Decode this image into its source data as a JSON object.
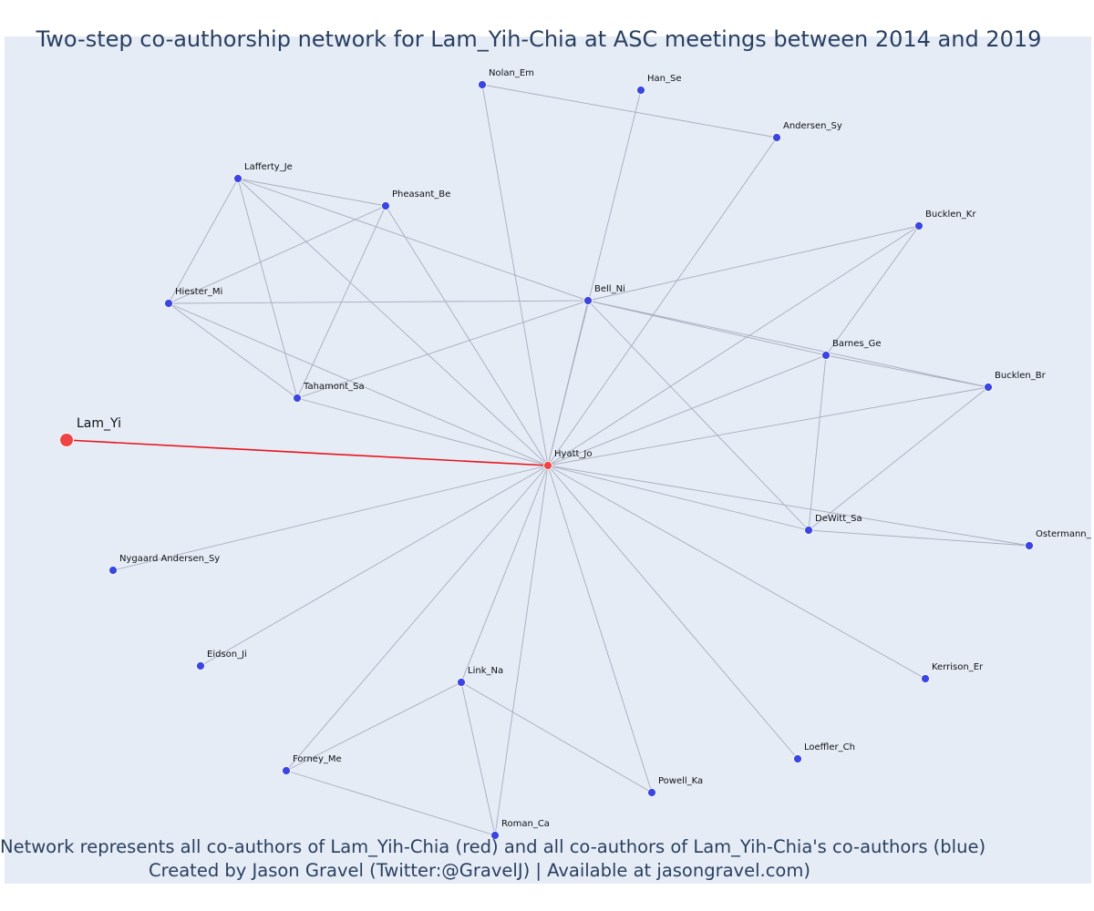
{
  "title": "Two-step co-authorship network for Lam_Yih-Chia at ASC meetings between 2014 and 2019",
  "caption": {
    "line1": "Network represents all co-authors of Lam_Yih-Chia (red) and all co-authors of Lam_Yih-Chia's co-authors (blue)",
    "line2": "Created by Jason Gravel (Twitter:@GravelJ) | Available at jasongravel.com)"
  },
  "colors": {
    "focus_node": "#ef4444",
    "author_node": "#3b46e2",
    "focus_edge": "#e8141c",
    "edge": "#a9abbd",
    "background": "#e5ecf6"
  },
  "nodes": [
    {
      "id": "Lam_Yi",
      "label": "Lam_Yi",
      "group": "focus"
    },
    {
      "id": "Hyatt_Jo",
      "label": "Hyatt_Jo",
      "group": "coauthor"
    },
    {
      "id": "Nolan_Em",
      "label": "Nolan_Em",
      "group": "two-step"
    },
    {
      "id": "Han_Se",
      "label": "Han_Se",
      "group": "two-step"
    },
    {
      "id": "Andersen_Sy",
      "label": "Andersen_Sy",
      "group": "two-step"
    },
    {
      "id": "Lafferty_Je",
      "label": "Lafferty_Je",
      "group": "two-step"
    },
    {
      "id": "Pheasant_Be",
      "label": "Pheasant_Be",
      "group": "two-step"
    },
    {
      "id": "Bucklen_Kr",
      "label": "Bucklen_Kr",
      "group": "two-step"
    },
    {
      "id": "Hiester_Mi",
      "label": "Hiester_Mi",
      "group": "two-step"
    },
    {
      "id": "Bell_Ni",
      "label": "Bell_Ni",
      "group": "two-step"
    },
    {
      "id": "Barnes_Ge",
      "label": "Barnes_Ge",
      "group": "two-step"
    },
    {
      "id": "Bucklen_Br",
      "label": "Bucklen_Br",
      "group": "two-step"
    },
    {
      "id": "Tahamont_Sa",
      "label": "Tahamont_Sa",
      "group": "two-step"
    },
    {
      "id": "DeWitt_Sa",
      "label": "DeWitt_Sa",
      "group": "two-step"
    },
    {
      "id": "Ostermann",
      "label": "Ostermann_",
      "group": "two-step"
    },
    {
      "id": "Nygaard_Andersen_Sy",
      "label": "Nygaard Andersen_Sy",
      "group": "two-step"
    },
    {
      "id": "Eidson_Ji",
      "label": "Eidson_Ji",
      "group": "two-step"
    },
    {
      "id": "Link_Na",
      "label": "Link_Na",
      "group": "two-step"
    },
    {
      "id": "Kerrison_Er",
      "label": "Kerrison_Er",
      "group": "two-step"
    },
    {
      "id": "Forney_Me",
      "label": "Forney_Me",
      "group": "two-step"
    },
    {
      "id": "Loeffler_Ch",
      "label": "Loeffler_Ch",
      "group": "two-step"
    },
    {
      "id": "Powell_Ka",
      "label": "Powell_Ka",
      "group": "two-step"
    },
    {
      "id": "Roman_Ca",
      "label": "Roman_Ca",
      "group": "two-step"
    }
  ],
  "edges": [
    [
      "Lam_Yi",
      "Hyatt_Jo"
    ],
    [
      "Hyatt_Jo",
      "Nolan_Em"
    ],
    [
      "Hyatt_Jo",
      "Han_Se"
    ],
    [
      "Hyatt_Jo",
      "Andersen_Sy"
    ],
    [
      "Hyatt_Jo",
      "Lafferty_Je"
    ],
    [
      "Hyatt_Jo",
      "Pheasant_Be"
    ],
    [
      "Hyatt_Jo",
      "Bucklen_Kr"
    ],
    [
      "Hyatt_Jo",
      "Hiester_Mi"
    ],
    [
      "Hyatt_Jo",
      "Bell_Ni"
    ],
    [
      "Hyatt_Jo",
      "Barnes_Ge"
    ],
    [
      "Hyatt_Jo",
      "Bucklen_Br"
    ],
    [
      "Hyatt_Jo",
      "Tahamont_Sa"
    ],
    [
      "Hyatt_Jo",
      "DeWitt_Sa"
    ],
    [
      "Hyatt_Jo",
      "Ostermann"
    ],
    [
      "Hyatt_Jo",
      "Nygaard_Andersen_Sy"
    ],
    [
      "Hyatt_Jo",
      "Eidson_Ji"
    ],
    [
      "Hyatt_Jo",
      "Link_Na"
    ],
    [
      "Hyatt_Jo",
      "Kerrison_Er"
    ],
    [
      "Hyatt_Jo",
      "Forney_Me"
    ],
    [
      "Hyatt_Jo",
      "Loeffler_Ch"
    ],
    [
      "Hyatt_Jo",
      "Powell_Ka"
    ],
    [
      "Hyatt_Jo",
      "Roman_Ca"
    ],
    [
      "Nolan_Em",
      "Andersen_Sy"
    ],
    [
      "Lafferty_Je",
      "Pheasant_Be"
    ],
    [
      "Lafferty_Je",
      "Hiester_Mi"
    ],
    [
      "Lafferty_Je",
      "Tahamont_Sa"
    ],
    [
      "Lafferty_Je",
      "Bell_Ni"
    ],
    [
      "Pheasant_Be",
      "Hiester_Mi"
    ],
    [
      "Pheasant_Be",
      "Tahamont_Sa"
    ],
    [
      "Hiester_Mi",
      "Tahamont_Sa"
    ],
    [
      "Hiester_Mi",
      "Bell_Ni"
    ],
    [
      "Bell_Ni",
      "Tahamont_Sa"
    ],
    [
      "Bell_Ni",
      "Bucklen_Kr"
    ],
    [
      "Bell_Ni",
      "Barnes_Ge"
    ],
    [
      "Bell_Ni",
      "Bucklen_Br"
    ],
    [
      "Bell_Ni",
      "DeWitt_Sa"
    ],
    [
      "Bucklen_Kr",
      "Barnes_Ge"
    ],
    [
      "Barnes_Ge",
      "Bucklen_Br"
    ],
    [
      "Barnes_Ge",
      "DeWitt_Sa"
    ],
    [
      "Bucklen_Br",
      "DeWitt_Sa"
    ],
    [
      "DeWitt_Sa",
      "Ostermann"
    ],
    [
      "Link_Na",
      "Forney_Me"
    ],
    [
      "Link_Na",
      "Powell_Ka"
    ],
    [
      "Link_Na",
      "Roman_Ca"
    ],
    [
      "Forney_Me",
      "Roman_Ca"
    ]
  ]
}
